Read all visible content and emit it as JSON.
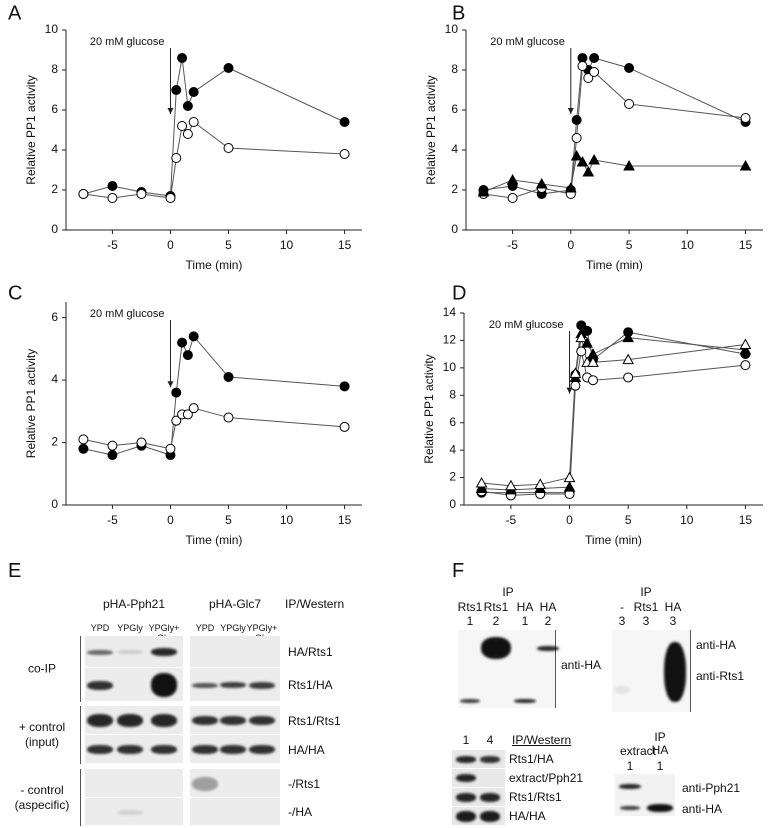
{
  "chart_data": [
    {
      "type": "line",
      "panel": "A",
      "ylabel": "Relative PP1 activity",
      "xlabel": "Time (min)",
      "annotation": {
        "text": "20 mM glucose",
        "x": 0
      },
      "line_color": "#555555",
      "x": [
        -7.5,
        -5,
        -2.5,
        0,
        0.5,
        1,
        1.5,
        2,
        5,
        15
      ],
      "xlim": [
        -9,
        16.5
      ],
      "xticks": [
        -5,
        0,
        5,
        10,
        15
      ],
      "ylim": [
        0,
        10
      ],
      "yticks": [
        0,
        2,
        4,
        6,
        8,
        10
      ],
      "series": [
        {
          "color": "#000000",
          "marker": "circle",
          "values": [
            1.8,
            2.2,
            1.9,
            1.7,
            7.0,
            8.6,
            6.2,
            6.9,
            8.1,
            5.4
          ]
        },
        {
          "color": "#ffffff",
          "marker": "circle",
          "values": [
            1.8,
            1.6,
            1.8,
            1.6,
            3.6,
            5.2,
            4.8,
            5.4,
            4.1,
            3.8
          ]
        }
      ]
    },
    {
      "type": "line",
      "panel": "B",
      "ylabel": "Relative PP1 activity",
      "xlabel": "Time (min)",
      "annotation": {
        "text": "20 mM glucose",
        "x": 0
      },
      "line_color": "#555555",
      "x": [
        -7.5,
        -5,
        -2.5,
        0,
        0.5,
        1,
        1.5,
        2,
        5,
        15
      ],
      "xlim": [
        -9,
        16.5
      ],
      "xticks": [
        -5,
        0,
        5,
        10,
        15
      ],
      "ylim": [
        0,
        10
      ],
      "yticks": [
        0,
        2,
        4,
        6,
        8,
        10
      ],
      "series": [
        {
          "color": "#000000",
          "marker": "circle",
          "values": [
            2.0,
            2.2,
            1.8,
            2.0,
            5.5,
            8.6,
            8.0,
            8.6,
            8.1,
            5.4
          ]
        },
        {
          "color": "#ffffff",
          "marker": "circle",
          "values": [
            1.8,
            1.6,
            2.1,
            1.8,
            4.6,
            8.2,
            7.6,
            7.9,
            6.3,
            5.6
          ]
        },
        {
          "color": "#000000",
          "marker": "triangle",
          "values": [
            1.9,
            2.5,
            2.3,
            2.1,
            3.7,
            3.4,
            2.9,
            3.5,
            3.2,
            3.2
          ]
        }
      ]
    },
    {
      "type": "line",
      "panel": "C",
      "ylabel": "Relative PP1 activity",
      "xlabel": "Time (min)",
      "annotation": {
        "text": "20 mM glucose",
        "x": 0
      },
      "line_color": "#555555",
      "x": [
        -7.5,
        -5,
        -2.5,
        0,
        0.5,
        1,
        1.5,
        2,
        5,
        15
      ],
      "xlim": [
        -9,
        16.5
      ],
      "xticks": [
        -5,
        0,
        5,
        10,
        15
      ],
      "ylim": [
        0,
        6.5
      ],
      "yticks": [
        0,
        2,
        4,
        6
      ],
      "series": [
        {
          "color": "#000000",
          "marker": "circle",
          "values": [
            1.8,
            1.6,
            1.9,
            1.6,
            3.6,
            5.2,
            4.8,
            5.4,
            4.1,
            3.8
          ]
        },
        {
          "color": "#ffffff",
          "marker": "circle",
          "values": [
            2.1,
            1.9,
            2.0,
            1.8,
            2.7,
            2.9,
            2.9,
            3.1,
            2.8,
            2.5
          ]
        }
      ]
    },
    {
      "type": "line",
      "panel": "D",
      "ylabel": "Relative PP1 activity",
      "xlabel": "Time (min)",
      "annotation": {
        "text": "20 mM glucose",
        "x": 0
      },
      "line_color": "#555555",
      "x": [
        -7.5,
        -5,
        -2.5,
        0,
        0.5,
        1,
        1.5,
        2,
        5,
        15
      ],
      "xlim": [
        -9,
        16.5
      ],
      "xticks": [
        -5,
        0,
        5,
        10,
        15
      ],
      "ylim": [
        0,
        14
      ],
      "yticks": [
        0,
        2,
        4,
        6,
        8,
        10,
        12,
        14
      ],
      "series": [
        {
          "color": "#000000",
          "marker": "circle",
          "values": [
            0.9,
            0.9,
            0.9,
            0.9,
            9.5,
            13.1,
            12.7,
            10.6,
            12.6,
            11.0
          ]
        },
        {
          "color": "#ffffff",
          "marker": "circle",
          "values": [
            1.0,
            0.7,
            0.8,
            0.8,
            8.7,
            11.2,
            9.3,
            9.1,
            9.3,
            10.2
          ]
        },
        {
          "color": "#000000",
          "marker": "triangle",
          "values": [
            1.2,
            1.1,
            1.2,
            1.3,
            9.3,
            12.5,
            11.8,
            11.0,
            12.2,
            11.3
          ]
        },
        {
          "color": "#ffffff",
          "marker": "triangle",
          "values": [
            1.6,
            1.4,
            1.5,
            2.0,
            9.6,
            12.2,
            10.4,
            10.4,
            10.6,
            11.7
          ]
        }
      ]
    }
  ],
  "panel_e": {
    "label": "E",
    "groups": [
      {
        "name": "pHA-Pph21",
        "lanes": [
          "YPD",
          "YPGly",
          "YPGly+ Glu"
        ]
      },
      {
        "name": "pHA-Glc7",
        "lanes": [
          "YPD",
          "YPGly",
          "YPGly+ Glu"
        ]
      }
    ],
    "header": "IP/Western",
    "sections": [
      {
        "name": "co-IP",
        "rows": [
          "HA/Rts1",
          "Rts1/HA"
        ]
      },
      {
        "name": "+ control (input)",
        "rows": [
          "Rts1/Rts1",
          "HA/HA"
        ]
      },
      {
        "name": "- control (aspecific)",
        "rows": [
          "-/Rts1",
          "-/HA"
        ]
      }
    ]
  },
  "panel_f": {
    "label": "F",
    "ip_blots": [
      {
        "title": "IP",
        "lanes": [
          "Rts1",
          "Rts1",
          "HA",
          "HA"
        ],
        "numbers": [
          1,
          2,
          1,
          2
        ],
        "rows": [
          "anti-HA"
        ]
      },
      {
        "title": "IP",
        "lanes": [
          "-",
          "Rts1",
          "HA"
        ],
        "numbers": [
          3,
          3,
          3
        ],
        "rows": [
          "anti-HA",
          "anti-Rts1"
        ]
      }
    ],
    "western": {
      "numbers": [
        1,
        4
      ],
      "header": "IP/Western",
      "rows": [
        "Rts1/HA",
        "extract/Pph21",
        "Rts1/Rts1",
        "HA/HA"
      ]
    },
    "extract_blot": {
      "lanes": [
        "extract",
        "IP HA"
      ],
      "numbers": [
        1,
        1
      ],
      "rows": [
        "anti-Pph21",
        "anti-HA"
      ]
    }
  }
}
